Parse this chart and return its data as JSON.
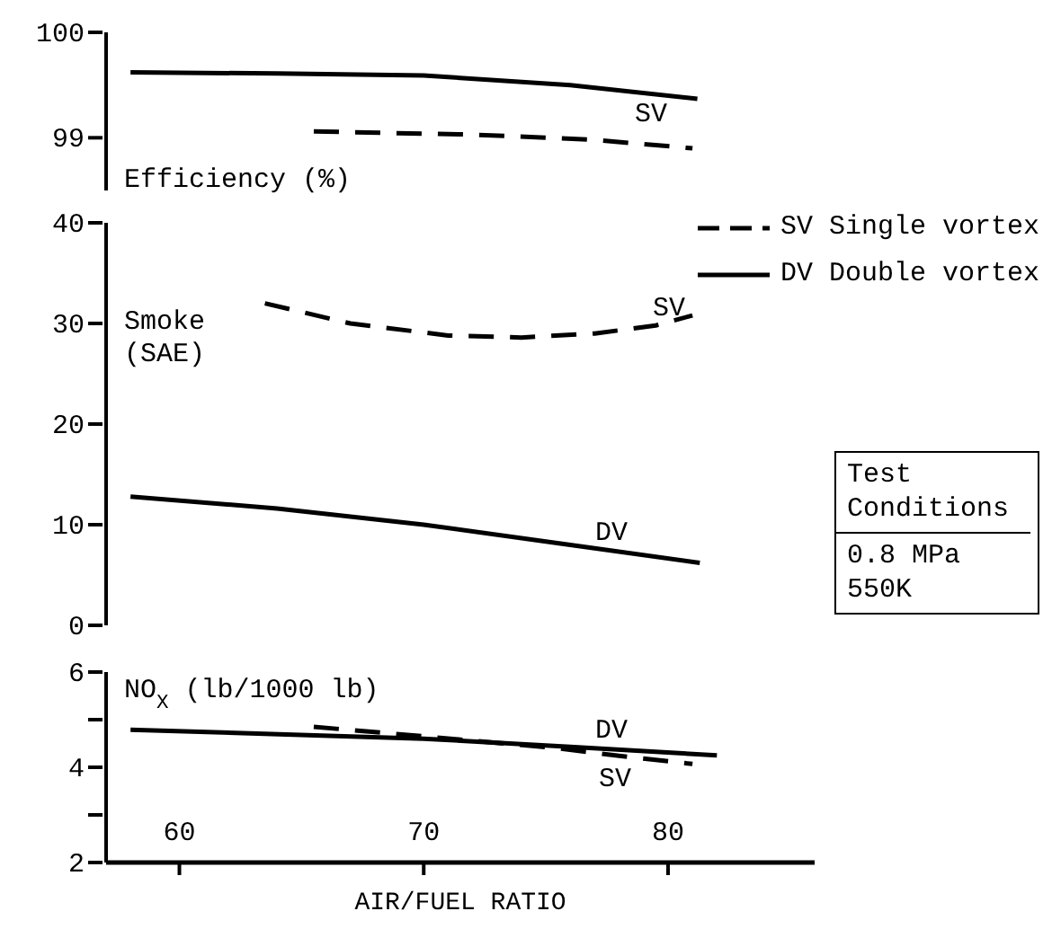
{
  "chart_data": [
    {
      "type": "line",
      "ylabel": "Efficiency (%)",
      "xticks": [
        60,
        70,
        80
      ],
      "ylim": [
        98.5,
        100
      ],
      "yticks": [
        99,
        100
      ],
      "tick_labels": "y",
      "marker": "none",
      "series": [
        {
          "color": "#000000",
          "line_style": "solid",
          "x": [
            58,
            64,
            70,
            76,
            81.2
          ],
          "values": [
            99.62,
            99.61,
            99.59,
            99.5,
            99.37
          ]
        },
        {
          "color": "#000000",
          "line_style": "dashed",
          "x": [
            65.5,
            72,
            77,
            81
          ],
          "values": [
            99.06,
            99.03,
            98.98,
            98.9
          ]
        }
      ],
      "annotations": [
        "SV"
      ]
    },
    {
      "type": "line",
      "ylabel": "Smoke (SAE)",
      "xticks": [
        60,
        70,
        80
      ],
      "ylim": [
        0,
        40
      ],
      "yticks": [
        0,
        10,
        20,
        30,
        40
      ],
      "tick_labels": "y",
      "marker": "none",
      "legend": "top right",
      "series": [
        {
          "name": "SV Single vortex",
          "color": "#000000",
          "line_style": "dashed",
          "x": [
            63.5,
            67,
            71,
            74,
            77,
            79.5,
            81
          ],
          "values": [
            32,
            30,
            28.8,
            28.6,
            29,
            29.8,
            30.8
          ]
        },
        {
          "name": "DV Double vortex",
          "color": "#000000",
          "line_style": "solid",
          "x": [
            58,
            64,
            70,
            76,
            81.3
          ],
          "values": [
            12.8,
            11.6,
            10,
            8,
            6.2
          ]
        }
      ],
      "annotations": [
        "SV",
        "DV",
        "Test Conditions",
        "0.8 MPa 550K"
      ]
    },
    {
      "type": "line",
      "ylabel": "NO$_{X}$ (lb/1000 lb)",
      "xlabel": "AIR/FUEL RATIO",
      "xlim": [
        57,
        86
      ],
      "xticks": [
        60,
        70,
        80
      ],
      "ylim": [
        2,
        6
      ],
      "yticks": [
        2,
        {
          "value": 3,
          "label": null
        },
        4,
        {
          "value": 5,
          "label": null
        },
        6
      ],
      "marker": "none",
      "series": [
        {
          "color": "#000000",
          "line_style": "solid",
          "x": [
            58,
            70,
            76,
            82
          ],
          "values": [
            4.79,
            4.6,
            4.43,
            4.25
          ]
        },
        {
          "color": "#000000",
          "line_style": "dashed",
          "x": [
            65.5,
            70,
            75.5,
            78,
            81
          ],
          "values": [
            4.85,
            4.65,
            4.4,
            4.24,
            4.07
          ]
        }
      ],
      "annotations": [
        "DV",
        "SV"
      ]
    }
  ]
}
